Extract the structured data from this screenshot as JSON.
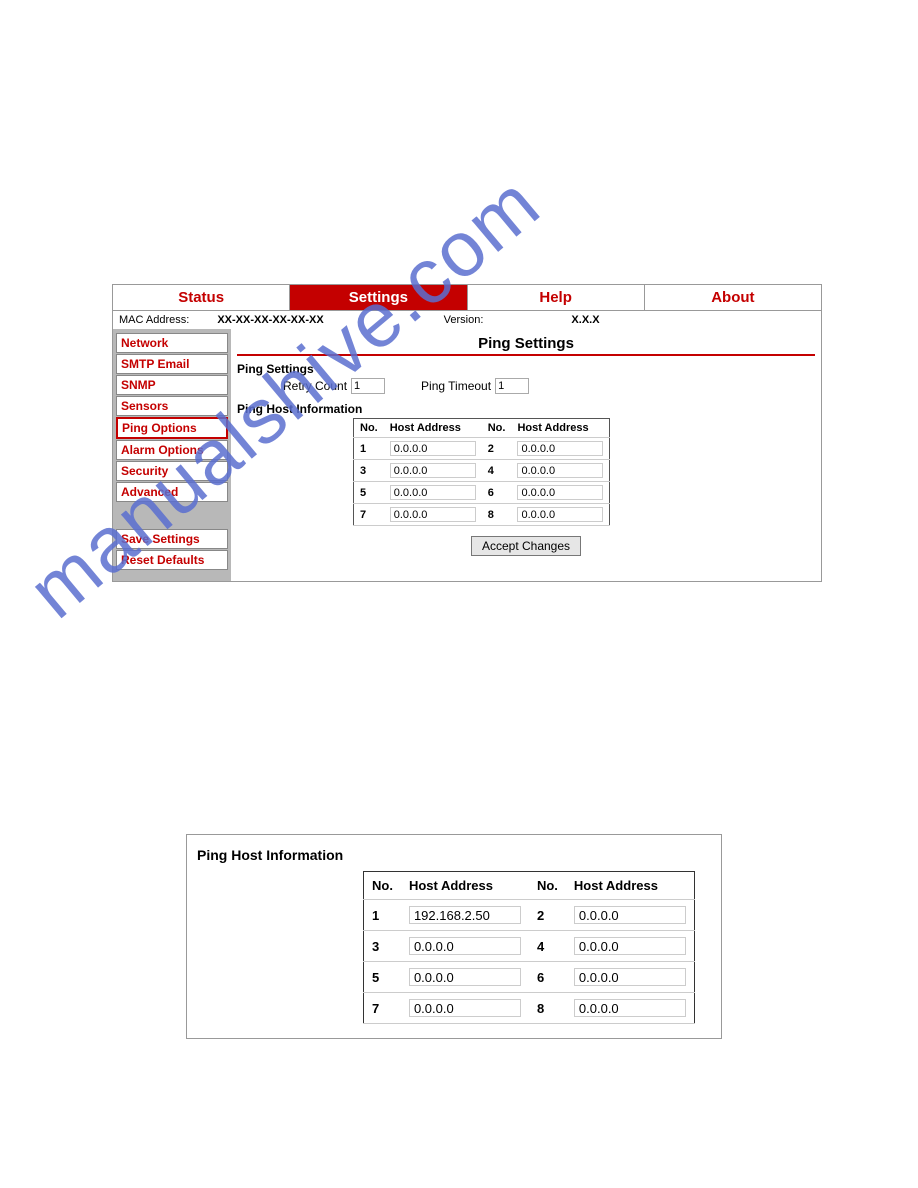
{
  "watermark": "manualshive.com",
  "tabs": {
    "status": "Status",
    "settings": "Settings",
    "help": "Help",
    "about": "About"
  },
  "info": {
    "mac_label": "MAC Address:",
    "mac_value": "XX-XX-XX-XX-XX-XX",
    "ver_label": "Version:",
    "ver_value": "X.X.X"
  },
  "sidebar": {
    "items": [
      "Network",
      "SMTP Email",
      "SNMP",
      "Sensors",
      "Ping Options",
      "Alarm Options",
      "Security",
      "Advanced"
    ],
    "actions": [
      "Save Settings",
      "Reset Defaults"
    ]
  },
  "page_title": "Ping Settings",
  "ping_settings": {
    "section_label": "Ping Settings",
    "retry_label": "Retry Count",
    "retry_value": "1",
    "timeout_label": "Ping Timeout",
    "timeout_value": "1"
  },
  "host_section_label": "Ping Host Information",
  "host_headers": {
    "no": "No.",
    "addr": "Host Address"
  },
  "hosts1": [
    {
      "n": "1",
      "a": "0.0.0.0"
    },
    {
      "n": "2",
      "a": "0.0.0.0"
    },
    {
      "n": "3",
      "a": "0.0.0.0"
    },
    {
      "n": "4",
      "a": "0.0.0.0"
    },
    {
      "n": "5",
      "a": "0.0.0.0"
    },
    {
      "n": "6",
      "a": "0.0.0.0"
    },
    {
      "n": "7",
      "a": "0.0.0.0"
    },
    {
      "n": "8",
      "a": "0.0.0.0"
    }
  ],
  "accept_label": "Accept Changes",
  "hosts2": [
    {
      "n": "1",
      "a": "192.168.2.50"
    },
    {
      "n": "2",
      "a": "0.0.0.0"
    },
    {
      "n": "3",
      "a": "0.0.0.0"
    },
    {
      "n": "4",
      "a": "0.0.0.0"
    },
    {
      "n": "5",
      "a": "0.0.0.0"
    },
    {
      "n": "6",
      "a": "0.0.0.0"
    },
    {
      "n": "7",
      "a": "0.0.0.0"
    },
    {
      "n": "8",
      "a": "0.0.0.0"
    }
  ],
  "colors": {
    "accent": "#c40000",
    "watermark": "#5b6fd0",
    "sidebar_bg": "#b8b8b8"
  }
}
